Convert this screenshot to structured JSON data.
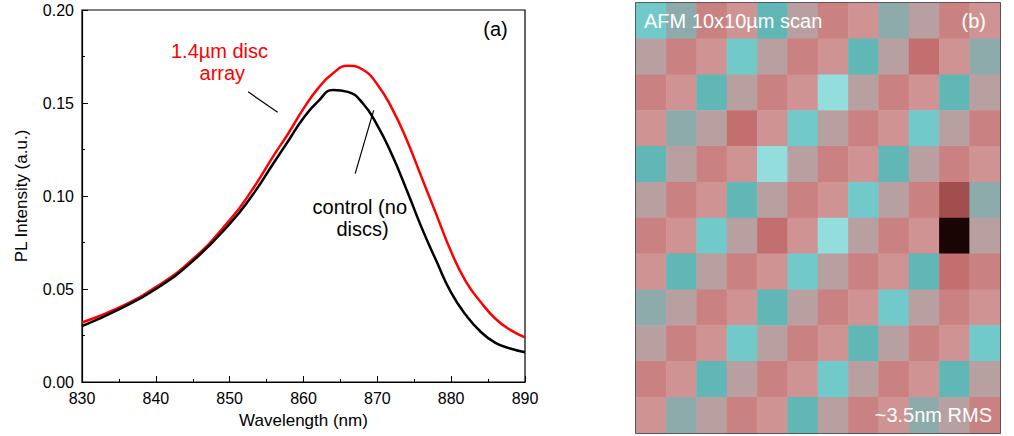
{
  "chart_data": [
    {
      "type": "line",
      "label": "(a)",
      "x_label": "Wavelength (nm)",
      "y_label": "PL Intensity (a.u.)",
      "xlim": [
        830,
        890
      ],
      "xticks": [
        830,
        840,
        850,
        860,
        870,
        880,
        890
      ],
      "ylim": [
        0,
        0.2
      ],
      "yticks": [
        {
          "value": 0,
          "label": "0.00"
        },
        {
          "value": 0.05,
          "label": "0.05"
        },
        {
          "value": 0.1,
          "label": "0.10"
        },
        {
          "value": 0.15,
          "label": "0.15"
        },
        {
          "value": 0.2,
          "label": "0.20"
        }
      ],
      "series": [
        {
          "name": "1.4µm disc array",
          "color": "#ff0000",
          "x": [
            830,
            835,
            840,
            845,
            850,
            853,
            856,
            858,
            860,
            862,
            864,
            866,
            868,
            870,
            872,
            874,
            876,
            878,
            880,
            882,
            884,
            886,
            888,
            890
          ],
          "values": [
            0.032,
            0.04,
            0.051,
            0.066,
            0.087,
            0.103,
            0.122,
            0.134,
            0.147,
            0.158,
            0.166,
            0.17,
            0.168,
            0.16,
            0.147,
            0.13,
            0.11,
            0.09,
            0.07,
            0.054,
            0.043,
            0.034,
            0.028,
            0.024
          ]
        },
        {
          "name": "control (no discs)",
          "color": "#000000",
          "x": [
            830,
            835,
            840,
            845,
            850,
            853,
            856,
            858,
            860,
            862,
            864,
            866,
            868,
            870,
            872,
            874,
            876,
            878,
            880,
            882,
            884,
            886,
            888,
            890
          ],
          "values": [
            0.03,
            0.039,
            0.05,
            0.065,
            0.085,
            0.1,
            0.118,
            0.13,
            0.142,
            0.151,
            0.157,
            0.156,
            0.15,
            0.138,
            0.122,
            0.103,
            0.083,
            0.065,
            0.048,
            0.036,
            0.027,
            0.021,
            0.018,
            0.016
          ]
        }
      ]
    },
    {
      "type": "heatmap",
      "label": "(b)",
      "title": "AFM 10x10µm scan",
      "annotations": [
        "~3.5nm RMS"
      ],
      "tick_labels": false,
      "zlim": [
        -8,
        6
      ],
      "cells": [
        [
          4,
          2,
          -1,
          0,
          3,
          1,
          -1,
          0,
          2,
          1,
          -1,
          0
        ],
        [
          1,
          -1,
          0,
          4,
          1,
          -1,
          0,
          3,
          1,
          -2,
          0,
          2
        ],
        [
          -1,
          0,
          3,
          1,
          -1,
          0,
          5,
          1,
          -1,
          0,
          3,
          1
        ],
        [
          0,
          2,
          1,
          -2,
          0,
          4,
          1,
          -1,
          0,
          4,
          1,
          -1
        ],
        [
          3,
          1,
          -1,
          0,
          5,
          1,
          -1,
          0,
          3,
          1,
          -1,
          0
        ],
        [
          1,
          -1,
          0,
          3,
          1,
          -1,
          0,
          4,
          1,
          -1,
          -4,
          2
        ],
        [
          -1,
          0,
          4,
          1,
          -2,
          0,
          5,
          1,
          -1,
          0,
          -8,
          1
        ],
        [
          0,
          3,
          1,
          -1,
          0,
          4,
          1,
          -1,
          0,
          3,
          -2,
          -1
        ],
        [
          2,
          1,
          -1,
          0,
          3,
          1,
          -1,
          0,
          4,
          1,
          -1,
          0
        ],
        [
          1,
          -1,
          0,
          4,
          1,
          -1,
          0,
          3,
          1,
          -1,
          0,
          4
        ],
        [
          -1,
          0,
          3,
          1,
          -1,
          0,
          4,
          1,
          -1,
          0,
          3,
          1
        ],
        [
          0,
          2,
          1,
          -1,
          0,
          3,
          1,
          -1,
          0,
          2,
          1,
          -1
        ]
      ]
    }
  ]
}
